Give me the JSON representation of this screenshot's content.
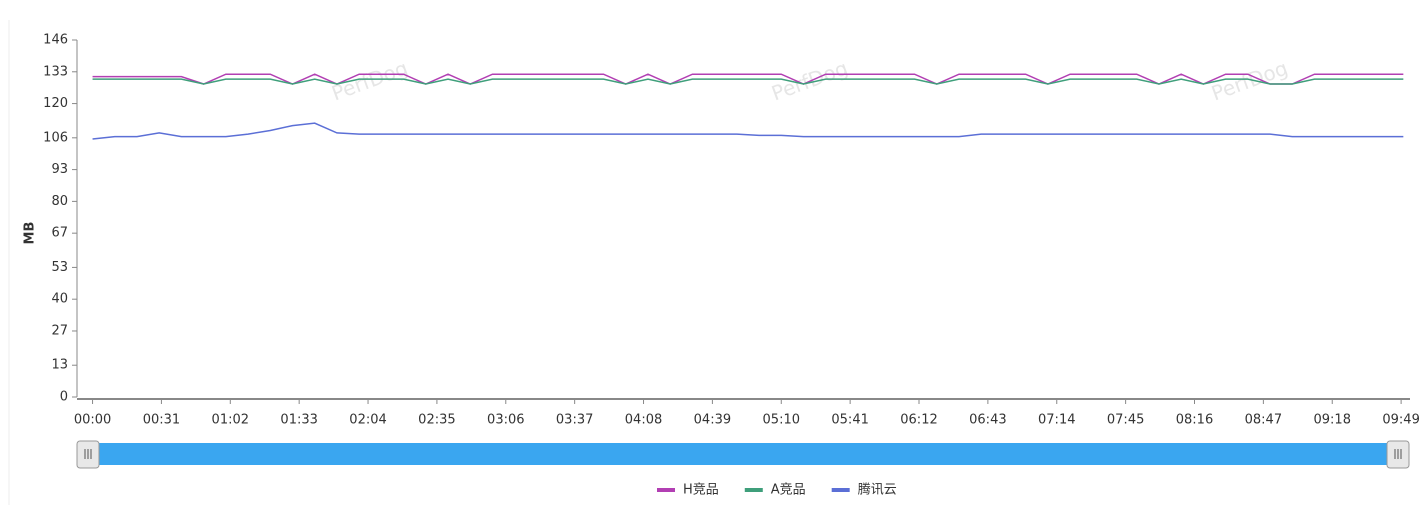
{
  "chart_data": {
    "type": "line",
    "y_label": "MB",
    "watermark": "PerfDog",
    "x": [
      0,
      10,
      20,
      30,
      40,
      50,
      60,
      70,
      80,
      90,
      100,
      110,
      120,
      130,
      140,
      150,
      160,
      170,
      180,
      190,
      200,
      210,
      220,
      230,
      240,
      250,
      260,
      270,
      280,
      290,
      300,
      310,
      320,
      330,
      340,
      350,
      360,
      370,
      380,
      390,
      400,
      410,
      420,
      430,
      440,
      450,
      460,
      470,
      480,
      490,
      500,
      510,
      520,
      530,
      540,
      550,
      560,
      570,
      580,
      590
    ],
    "series": [
      {
        "name": "H竞品",
        "color": "#b23fb3",
        "values": [
          131,
          131,
          131,
          131,
          131,
          128,
          132,
          132,
          132,
          128,
          132,
          128,
          132,
          132,
          132,
          128,
          132,
          128,
          132,
          132,
          132,
          132,
          132,
          132,
          128,
          132,
          128,
          132,
          132,
          132,
          132,
          132,
          128,
          132,
          132,
          132,
          132,
          132,
          128,
          132,
          132,
          132,
          132,
          128,
          132,
          132,
          132,
          132,
          128,
          132,
          128,
          132,
          132,
          128,
          128,
          132,
          132,
          132,
          132,
          132
        ]
      },
      {
        "name": "A竞品",
        "color": "#3f9f7b",
        "values": [
          130,
          130,
          130,
          130,
          130,
          128,
          130,
          130,
          130,
          128,
          130,
          128,
          130,
          130,
          130,
          128,
          130,
          128,
          130,
          130,
          130,
          130,
          130,
          130,
          128,
          130,
          128,
          130,
          130,
          130,
          130,
          130,
          128,
          130,
          130,
          130,
          130,
          130,
          128,
          130,
          130,
          130,
          130,
          128,
          130,
          130,
          130,
          130,
          128,
          130,
          128,
          130,
          130,
          128,
          128,
          130,
          130,
          130,
          130,
          130
        ]
      },
      {
        "name": "腾讯云",
        "color": "#5b6fd6",
        "values": [
          105.5,
          106.5,
          106.5,
          108,
          106.5,
          106.5,
          106.5,
          107.5,
          109,
          111,
          112,
          108,
          107.5,
          107.5,
          107.5,
          107.5,
          107.5,
          107.5,
          107.5,
          107.5,
          107.5,
          107.5,
          107.5,
          107.5,
          107.5,
          107.5,
          107.5,
          107.5,
          107.5,
          107.5,
          107,
          107,
          106.5,
          106.5,
          106.5,
          106.5,
          106.5,
          106.5,
          106.5,
          106.5,
          107.5,
          107.5,
          107.5,
          107.5,
          107.5,
          107.5,
          107.5,
          107.5,
          107.5,
          107.5,
          107.5,
          107.5,
          107.5,
          107.5,
          106.5,
          106.5,
          106.5,
          106.5,
          106.5,
          106.5
        ]
      }
    ],
    "xlim": [
      -7,
      593
    ],
    "xticks": [
      {
        "value": 0,
        "label": "00:00"
      },
      {
        "value": 31,
        "label": "00:31"
      },
      {
        "value": 62,
        "label": "01:02"
      },
      {
        "value": 93,
        "label": "01:33"
      },
      {
        "value": 124,
        "label": "02:04"
      },
      {
        "value": 155,
        "label": "02:35"
      },
      {
        "value": 186,
        "label": "03:06"
      },
      {
        "value": 217,
        "label": "03:37"
      },
      {
        "value": 248,
        "label": "04:08"
      },
      {
        "value": 279,
        "label": "04:39"
      },
      {
        "value": 310,
        "label": "05:10"
      },
      {
        "value": 341,
        "label": "05:41"
      },
      {
        "value": 372,
        "label": "06:12"
      },
      {
        "value": 403,
        "label": "06:43"
      },
      {
        "value": 434,
        "label": "07:14"
      },
      {
        "value": 465,
        "label": "07:45"
      },
      {
        "value": 496,
        "label": "08:16"
      },
      {
        "value": 527,
        "label": "08:47"
      },
      {
        "value": 558,
        "label": "09:18"
      },
      {
        "value": 589,
        "label": "09:49"
      }
    ],
    "ylim": [
      0,
      146
    ],
    "yticks": [
      0,
      13,
      27,
      40,
      53,
      67,
      80,
      93,
      106,
      120,
      133,
      146
    ],
    "grid": false,
    "legend": "bottom"
  }
}
